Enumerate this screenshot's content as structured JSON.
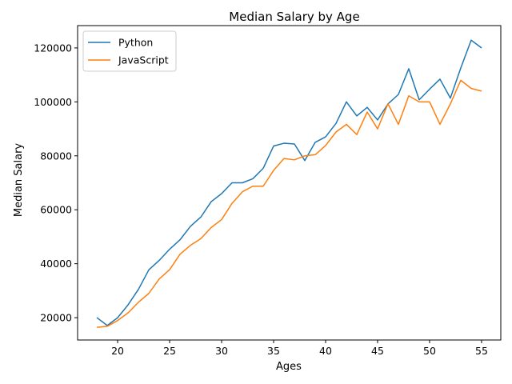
{
  "chart_data": {
    "type": "line",
    "title": "Median Salary by Age",
    "xlabel": "Ages",
    "ylabel": "Median Salary",
    "xlim": [
      16.15,
      56.85
    ],
    "ylim": [
      11725,
      128275
    ],
    "xticks": [
      20,
      25,
      30,
      35,
      40,
      45,
      50,
      55
    ],
    "xtick_labels": [
      "20",
      "25",
      "30",
      "35",
      "40",
      "45",
      "50",
      "55"
    ],
    "yticks": [
      20000,
      40000,
      60000,
      80000,
      100000,
      120000
    ],
    "ytick_labels": [
      "20000",
      "40000",
      "60000",
      "80000",
      "100000",
      "120000"
    ],
    "grid": false,
    "legend_position": "upper left",
    "x": [
      18,
      19,
      20,
      21,
      22,
      23,
      24,
      25,
      26,
      27,
      28,
      29,
      30,
      31,
      32,
      33,
      34,
      35,
      36,
      37,
      38,
      39,
      40,
      41,
      42,
      43,
      44,
      45,
      46,
      47,
      48,
      49,
      50,
      51,
      52,
      53,
      54,
      55
    ],
    "series": [
      {
        "name": "Python",
        "color": "#1f77b4",
        "values": [
          20046,
          17100,
          20000,
          24744,
          30500,
          37732,
          41247,
          45372,
          48876,
          53850,
          57287,
          63016,
          65998,
          70003,
          70000,
          71496,
          75370,
          83640,
          84666,
          84392,
          78254,
          85000,
          87038,
          91991,
          100000,
          94796,
          97962,
          93302,
          99240,
          102736,
          112285,
          100771,
          104708,
          108423,
          101407,
          112542,
          122870,
          120000
        ]
      },
      {
        "name": "JavaScript",
        "color": "#ff7f0e",
        "values": [
          16446,
          16791,
          18942,
          21780,
          25704,
          29000,
          34372,
          37810,
          43515,
          46823,
          49293,
          53437,
          56373,
          62375,
          66674,
          68745,
          68746,
          74583,
          79000,
          78508,
          79996,
          80403,
          83820,
          88833,
          91660,
          87892,
          96243,
          90000,
          99313,
          91660,
          102264,
          100000,
          100000,
          91660,
          99240,
          108000,
          105000,
          104000
        ]
      }
    ]
  }
}
